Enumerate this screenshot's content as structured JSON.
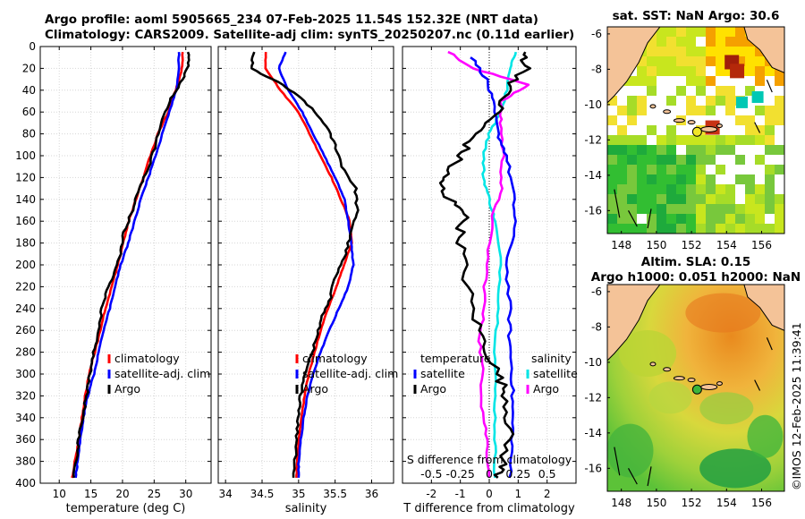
{
  "header": {
    "line1": "Argo profile: aoml 5905665_234 07-Feb-2025 11.54S 152.32E (NRT data)",
    "line2": "Climatology: CARS2009. Satellite-adj clim: synTS_20250207.nc (0.11d earlier)"
  },
  "side_stamp": "©IMOS 12-Feb-2025 11:39:41",
  "colors": {
    "climatology": "#ff0000",
    "satellite": "#0000ff",
    "argo": "#000000",
    "sat_salinity": "#00e5e5",
    "argo_salinity": "#ff00ff"
  },
  "chart_data": [
    {
      "type": "line",
      "title": "",
      "xlabel": "temperature (deg C)",
      "ylabel": "",
      "xlim": [
        7,
        34
      ],
      "ylim": [
        0,
        400
      ],
      "x_ticks": [
        10,
        15,
        20,
        25,
        30
      ],
      "y_ticks": [
        0,
        20,
        40,
        60,
        80,
        100,
        120,
        140,
        160,
        180,
        200,
        220,
        240,
        260,
        280,
        300,
        320,
        340,
        360,
        380,
        400
      ],
      "legend": [
        "climatology",
        "satellite-adj. clim",
        "Argo"
      ],
      "legend_position": "bottom-right",
      "series": [
        {
          "name": "climatology",
          "color": "#ff0000",
          "depth": [
            5,
            20,
            40,
            60,
            80,
            100,
            120,
            140,
            160,
            180,
            200,
            220,
            240,
            260,
            280,
            300,
            320,
            340,
            360,
            380,
            395
          ],
          "values": [
            29.5,
            29.4,
            28.4,
            27.2,
            25.6,
            24.4,
            23.3,
            22.1,
            21.0,
            20.1,
            19.3,
            18.3,
            17.3,
            16.5,
            15.6,
            14.7,
            14.1,
            13.6,
            13.1,
            12.5,
            12.0
          ]
        },
        {
          "name": "satellite-adj. clim",
          "color": "#0000ff",
          "depth": [
            5,
            20,
            40,
            60,
            80,
            100,
            120,
            140,
            160,
            180,
            200,
            220,
            240,
            260,
            280,
            300,
            320,
            340,
            360,
            380,
            395
          ],
          "values": [
            28.9,
            28.9,
            28.5,
            27.4,
            26.3,
            25.2,
            24.1,
            22.9,
            21.9,
            20.9,
            19.7,
            18.8,
            18.0,
            17.0,
            16.2,
            15.5,
            14.5,
            13.8,
            13.3,
            12.9,
            12.6
          ]
        },
        {
          "name": "Argo",
          "color": "#000000",
          "depth": [
            5,
            20,
            35,
            50,
            70,
            90,
            110,
            130,
            150,
            170,
            190,
            210,
            230,
            250,
            270,
            290,
            310,
            330,
            350,
            370,
            395
          ],
          "values": [
            30.4,
            30.3,
            29.0,
            27.4,
            26.2,
            25.2,
            24.2,
            22.6,
            21.6,
            20.2,
            19.6,
            18.5,
            17.2,
            16.4,
            15.8,
            15.1,
            14.6,
            14.0,
            13.3,
            12.9,
            12.3
          ]
        }
      ]
    },
    {
      "type": "line",
      "title": "",
      "xlabel": "salinity",
      "ylabel": "",
      "xlim": [
        33.9,
        36.3
      ],
      "ylim": [
        0,
        400
      ],
      "x_ticks": [
        34,
        34.5,
        35,
        35.5,
        36
      ],
      "legend": [
        "climatology",
        "satellite-adj. clim",
        "Argo"
      ],
      "legend_position": "bottom-right",
      "series": [
        {
          "name": "climatology",
          "color": "#ff0000",
          "depth": [
            5,
            20,
            40,
            60,
            80,
            100,
            120,
            140,
            160,
            180,
            200,
            220,
            240,
            260,
            280,
            300,
            320,
            340,
            360,
            380,
            395
          ],
          "values": [
            34.55,
            34.55,
            34.75,
            35.0,
            35.15,
            35.3,
            35.45,
            35.58,
            35.7,
            35.73,
            35.62,
            35.52,
            35.4,
            35.3,
            35.22,
            35.14,
            35.08,
            35.04,
            35.0,
            34.98,
            34.97
          ]
        },
        {
          "name": "satellite-adj. clim",
          "color": "#0000ff",
          "depth": [
            5,
            20,
            40,
            60,
            80,
            100,
            120,
            140,
            160,
            180,
            200,
            220,
            240,
            260,
            280,
            300,
            320,
            340,
            360,
            380,
            395
          ],
          "values": [
            34.82,
            34.73,
            34.86,
            35.05,
            35.2,
            35.35,
            35.5,
            35.63,
            35.68,
            35.72,
            35.75,
            35.68,
            35.55,
            35.42,
            35.3,
            35.2,
            35.12,
            35.07,
            35.03,
            35.0,
            35.0
          ]
        },
        {
          "name": "Argo",
          "color": "#000000",
          "depth": [
            5,
            20,
            35,
            50,
            70,
            90,
            110,
            130,
            150,
            170,
            190,
            210,
            230,
            250,
            270,
            290,
            310,
            330,
            350,
            370,
            395
          ],
          "values": [
            34.38,
            34.35,
            34.78,
            35.08,
            35.35,
            35.5,
            35.6,
            35.78,
            35.8,
            35.72,
            35.64,
            35.5,
            35.44,
            35.3,
            35.24,
            35.12,
            35.04,
            35.02,
            34.98,
            34.97,
            34.93
          ]
        }
      ]
    },
    {
      "type": "line",
      "title": "",
      "xlabel": "T difference from climatology",
      "secondary_xlabel": "S difference from climatology",
      "ylabel": "",
      "xlim": [
        -3,
        3
      ],
      "ylim": [
        0,
        400
      ],
      "x_ticks": [
        -2,
        -1,
        0,
        1,
        2
      ],
      "secondary_x_ticks": [
        -0.5,
        -0.25,
        0,
        0.25,
        0.5
      ],
      "legend_left_title": "temperature",
      "legend_right_title": "salinity",
      "legend": [
        "satellite",
        "Argo",
        "satellite",
        "Argo"
      ],
      "series": [
        {
          "name": "temperature satellite",
          "color": "#0000ff",
          "depth": [
            10,
            30,
            50,
            80,
            100,
            130,
            160,
            200,
            240,
            270,
            300,
            330,
            360,
            395
          ],
          "values": [
            -0.6,
            -0.1,
            0.1,
            0.3,
            0.6,
            0.8,
            0.9,
            0.6,
            0.7,
            0.7,
            0.8,
            0.8,
            0.8,
            0.7
          ]
        },
        {
          "name": "temperature Argo",
          "color": "#000000",
          "depth": [
            5,
            20,
            40,
            60,
            80,
            100,
            120,
            135,
            150,
            170,
            200,
            240,
            270,
            300,
            320,
            350,
            380,
            395
          ],
          "values": [
            1.2,
            1.3,
            0.6,
            0.3,
            -0.5,
            -1.0,
            -1.6,
            -1.7,
            -0.8,
            -1.0,
            -0.9,
            -0.6,
            -0.2,
            0.3,
            0.6,
            0.7,
            0.5,
            0.3
          ]
        },
        {
          "name": "salinity satellite",
          "color": "#00e5e5",
          "depth": [
            5,
            20,
            40,
            60,
            80,
            100,
            120,
            140,
            160,
            200,
            240,
            280,
            320,
            360,
            395
          ],
          "values": [
            0.23,
            0.18,
            0.15,
            0.1,
            0.0,
            -0.05,
            -0.05,
            0.0,
            0.05,
            0.1,
            0.08,
            0.05,
            0.05,
            0.05,
            0.05
          ]
        },
        {
          "name": "salinity Argo",
          "color": "#ff00ff",
          "depth": [
            5,
            20,
            35,
            50,
            70,
            100,
            130,
            160,
            200,
            240,
            270,
            300,
            330,
            360,
            395
          ],
          "values": [
            -0.35,
            -0.15,
            0.35,
            0.1,
            0.1,
            0.12,
            0.1,
            0.02,
            -0.02,
            -0.05,
            -0.08,
            -0.06,
            -0.06,
            -0.02,
            0.0
          ]
        }
      ]
    },
    {
      "type": "heatmap",
      "title": "sat. SST: NaN Argo: 30.6",
      "xlabel": "",
      "ylabel": "",
      "xlim": [
        147.2,
        157.3
      ],
      "ylim": [
        -17.3,
        -5.6
      ],
      "x_ticks": [
        148,
        150,
        152,
        154,
        156
      ],
      "y_ticks": [
        -6,
        -8,
        -10,
        -12,
        -14,
        -16
      ],
      "argo_position": [
        152.32,
        -11.54
      ]
    },
    {
      "type": "heatmap",
      "title_line1": "Altim. SLA: 0.15",
      "title_line2": "Argo h1000: 0.051 h2000: NaN",
      "xlabel": "",
      "ylabel": "",
      "xlim": [
        147.2,
        157.3
      ],
      "ylim": [
        -17.3,
        -5.6
      ],
      "x_ticks": [
        148,
        150,
        152,
        154,
        156
      ],
      "y_ticks": [
        -6,
        -8,
        -10,
        -12,
        -14,
        -16
      ],
      "argo_position": [
        152.32,
        -11.54
      ]
    }
  ]
}
